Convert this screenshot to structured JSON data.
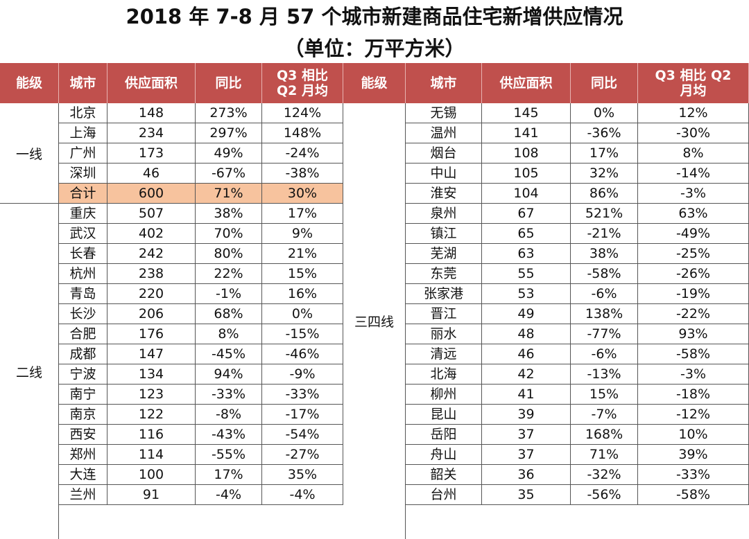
{
  "title": "2018 年 7-8 月 57 个城市新建商品住宅新增供应情况",
  "subtitle": "（单位：万平方米）",
  "header": [
    "能级",
    "城市",
    "供应面积",
    "同比",
    "Q3 相比\nQ2 月均",
    "能级",
    "城市",
    "供应面积",
    "同比",
    "Q3 相比 Q2\n月均"
  ],
  "left": {
    "tier1": "一线",
    "tier2": "二线",
    "rows": [
      [
        "北京",
        "148",
        "273%",
        "124%"
      ],
      [
        "上海",
        "234",
        "297%",
        "148%"
      ],
      [
        "广州",
        "173",
        "49%",
        "-24%"
      ],
      [
        "深圳",
        "46",
        "-67%",
        "-38%"
      ],
      [
        "合计",
        "600",
        "71%",
        "30%"
      ],
      [
        "重庆",
        "507",
        "38%",
        "17%"
      ],
      [
        "武汉",
        "402",
        "70%",
        "9%"
      ],
      [
        "长春",
        "242",
        "80%",
        "21%"
      ],
      [
        "杭州",
        "238",
        "22%",
        "15%"
      ],
      [
        "青岛",
        "220",
        "-1%",
        "16%"
      ],
      [
        "长沙",
        "206",
        "68%",
        "0%"
      ],
      [
        "合肥",
        "176",
        "8%",
        "-15%"
      ],
      [
        "成都",
        "147",
        "-45%",
        "-46%"
      ],
      [
        "宁波",
        "134",
        "94%",
        "-9%"
      ],
      [
        "南宁",
        "123",
        "-33%",
        "-33%"
      ],
      [
        "南京",
        "122",
        "-8%",
        "-17%"
      ],
      [
        "西安",
        "116",
        "-43%",
        "-54%"
      ],
      [
        "郑州",
        "114",
        "-55%",
        "-27%"
      ],
      [
        "大连",
        "100",
        "17%",
        "35%"
      ],
      [
        "兰州",
        "91",
        "-4%",
        "-4%"
      ]
    ]
  },
  "right": {
    "tier": "三四线",
    "rows": [
      [
        "无锡",
        "145",
        "0%",
        "12%"
      ],
      [
        "温州",
        "141",
        "-36%",
        "-30%"
      ],
      [
        "烟台",
        "108",
        "17%",
        "8%"
      ],
      [
        "中山",
        "105",
        "32%",
        "-14%"
      ],
      [
        "淮安",
        "104",
        "86%",
        "-3%"
      ],
      [
        "泉州",
        "67",
        "521%",
        "63%"
      ],
      [
        "镇江",
        "65",
        "-21%",
        "-49%"
      ],
      [
        "芜湖",
        "63",
        "38%",
        "-25%"
      ],
      [
        "东莞",
        "55",
        "-58%",
        "-26%"
      ],
      [
        "张家港",
        "53",
        "-6%",
        "-19%"
      ],
      [
        "晋江",
        "49",
        "138%",
        "-22%"
      ],
      [
        "丽水",
        "48",
        "-77%",
        "93%"
      ],
      [
        "清远",
        "46",
        "-6%",
        "-58%"
      ],
      [
        "北海",
        "42",
        "-13%",
        "-3%"
      ],
      [
        "柳州",
        "41",
        "15%",
        "-18%"
      ],
      [
        "昆山",
        "39",
        "-7%",
        "-12%"
      ],
      [
        "岳阳",
        "37",
        "168%",
        "10%"
      ],
      [
        "舟山",
        "37",
        "71%",
        "39%"
      ],
      [
        "韶关",
        "36",
        "-32%",
        "-33%"
      ],
      [
        "台州",
        "35",
        "-56%",
        "-58%"
      ]
    ]
  },
  "colors": {
    "header_bg": "#c0504d",
    "header_text": "#ffffff",
    "highlight": "#f7c39e"
  }
}
